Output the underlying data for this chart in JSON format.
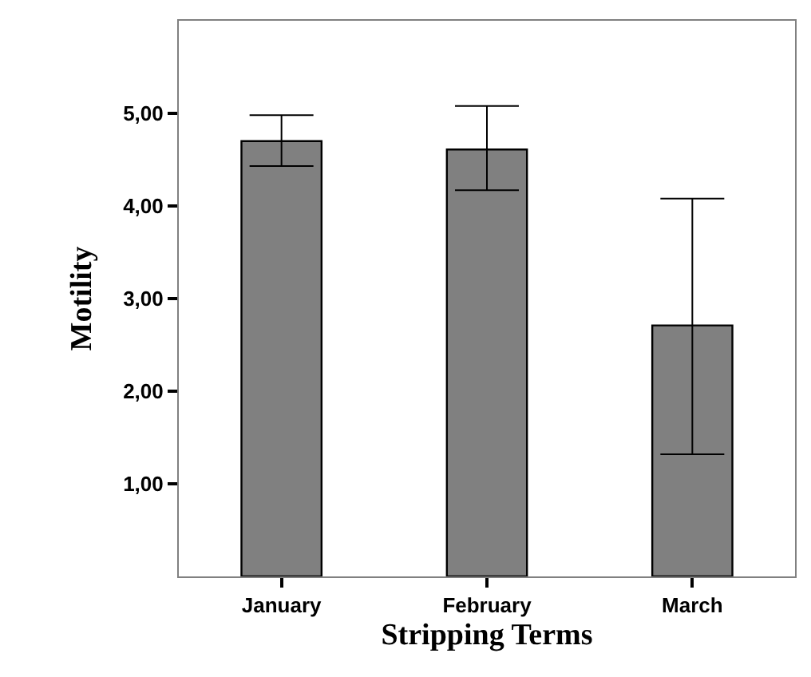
{
  "chart_data": {
    "type": "bar",
    "xlabel": "Stripping Terms",
    "ylabel": "Motility",
    "categories": [
      "January",
      "February",
      "March"
    ],
    "values": [
      4.7,
      4.61,
      2.71
    ],
    "errors": [
      [
        4.43,
        4.98
      ],
      [
        4.17,
        5.08
      ],
      [
        1.32,
        4.08
      ]
    ],
    "color": "#808080",
    "ylim": [
      0,
      6
    ],
    "yticks": [
      {
        "value": 1,
        "label": "1,00"
      },
      {
        "value": 2,
        "label": "2,00"
      },
      {
        "value": 3,
        "label": "3,00"
      },
      {
        "value": 4,
        "label": "4,00"
      },
      {
        "value": 5,
        "label": "5,00"
      }
    ]
  }
}
